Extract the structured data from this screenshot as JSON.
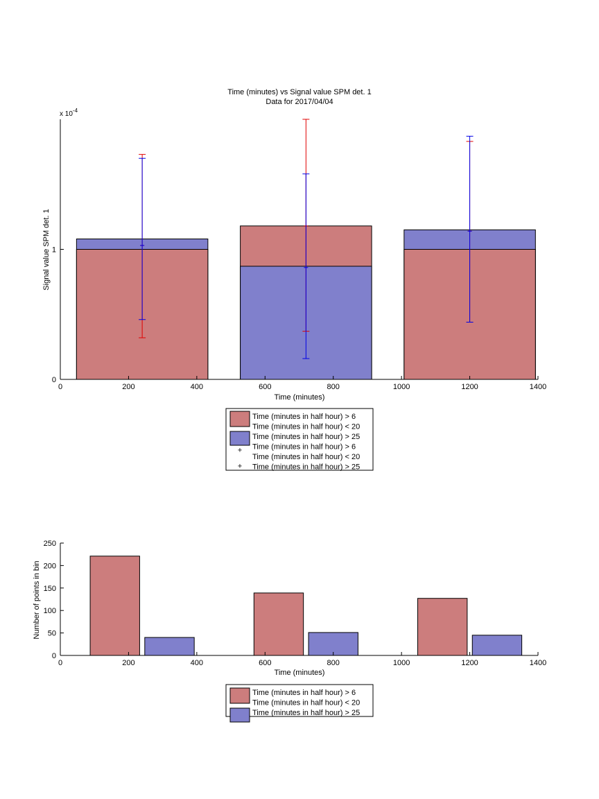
{
  "chart_data": [
    {
      "type": "bar",
      "title": "Time (minutes) vs Signal value SPM det. 1",
      "subtitle": "Data for 2017/04/04",
      "xlabel": "Time (minutes)",
      "ylabel": "Signal value SPM det. 1",
      "y_exponent_label": "x 10",
      "y_exponent_power": "-4",
      "xlim": [
        0,
        1400
      ],
      "ylim": [
        0,
        2.0
      ],
      "y_scale_factor": "1e-4",
      "xticks": [
        0,
        200,
        400,
        600,
        800,
        1000,
        1200,
        1400
      ],
      "yticks": [
        {
          "value": 0,
          "label": "0"
        },
        {
          "value": 1,
          "label": "1"
        }
      ],
      "bar_width": 385,
      "bars": [
        {
          "x": 240,
          "red": 1.0,
          "blue": 1.08
        },
        {
          "x": 720,
          "red": 1.18,
          "blue": 0.87
        },
        {
          "x": 1200,
          "red": 1.0,
          "blue": 1.15
        }
      ],
      "errorbars": [
        {
          "series": "red",
          "x": 240,
          "low": 0.32,
          "mid": 1.03,
          "high": 1.73
        },
        {
          "series": "blue",
          "x": 240,
          "low": 0.46,
          "mid": 1.03,
          "high": 1.7
        },
        {
          "series": "red",
          "x": 720,
          "low": 0.37,
          "mid": 1.18,
          "high": 2.0
        },
        {
          "series": "blue",
          "x": 720,
          "low": 0.16,
          "mid": 0.86,
          "high": 1.58
        },
        {
          "series": "red",
          "x": 1200,
          "low": 0.44,
          "mid": 1.14,
          "high": 1.83
        },
        {
          "series": "blue",
          "x": 1200,
          "low": 0.44,
          "mid": 1.14,
          "high": 1.87
        }
      ],
      "legend": [
        {
          "kind": "patch",
          "series": "red",
          "lines": [
            "Time (minutes in half hour) > 6",
            "Time (minutes in half hour) < 20"
          ]
        },
        {
          "kind": "patch",
          "series": "blue",
          "lines": [
            "Time (minutes in half hour) > 25"
          ]
        },
        {
          "kind": "marker",
          "series": "red",
          "lines": [
            "Time (minutes in half hour) > 6",
            "Time (minutes in half hour) < 20"
          ]
        },
        {
          "kind": "marker",
          "series": "blue",
          "lines": [
            "Time (minutes in half hour) > 25"
          ]
        }
      ],
      "legend_placement": "below"
    },
    {
      "type": "bar",
      "title": "",
      "xlabel": "Time (minutes)",
      "ylabel": "Number of points in bin",
      "xlim": [
        0,
        1400
      ],
      "ylim": [
        0,
        250
      ],
      "xticks": [
        0,
        200,
        400,
        600,
        800,
        1000,
        1200,
        1400
      ],
      "yticks": [
        0,
        50,
        100,
        150,
        200,
        250
      ],
      "bar_width": 145,
      "series": [
        {
          "series": "red",
          "x": [
            160,
            640,
            1120
          ],
          "values": [
            221,
            139,
            127
          ]
        },
        {
          "series": "blue",
          "x": [
            320,
            800,
            1280
          ],
          "values": [
            40,
            51,
            45
          ]
        }
      ],
      "legend": [
        {
          "series": "red",
          "lines": [
            "Time (minutes in half hour) > 6",
            "Time (minutes in half hour) < 20"
          ]
        },
        {
          "series": "blue",
          "lines": [
            "Time (minutes in half hour) > 25"
          ]
        }
      ],
      "legend_placement": "below"
    }
  ],
  "colors": {
    "red_fill": "#cc7d7d",
    "blue_fill": "#8080cc",
    "red_line": "#e00000",
    "blue_line": "#0000e6"
  }
}
